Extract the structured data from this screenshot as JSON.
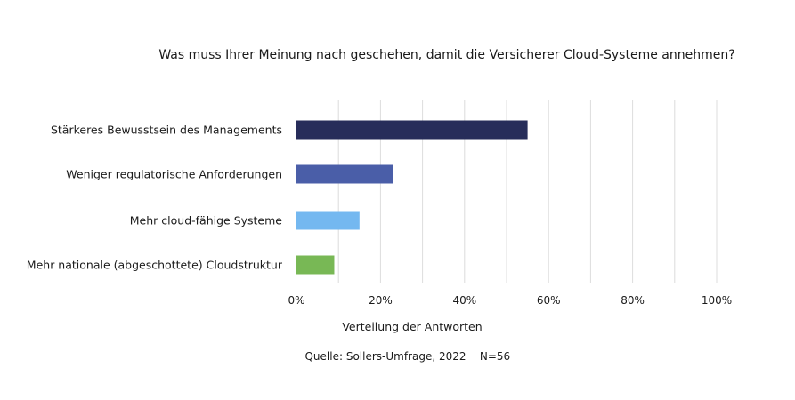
{
  "chart_data": {
    "type": "bar",
    "orientation": "horizontal",
    "title": "Was muss Ihrer Meinung nach geschehen, damit die Versicherer Cloud-Systeme annehmen?",
    "categories": [
      "Stärkeres Bewusstsein des Managements",
      "Weniger regulatorische Anforderungen",
      "Mehr cloud-fähige Systeme",
      "Mehr nationale (abgeschottete) Cloudstruktur"
    ],
    "values": [
      55,
      23,
      15,
      9
    ],
    "colors": [
      "#272d5a",
      "#4a5ea8",
      "#74b8f0",
      "#78b855"
    ],
    "xlim": [
      0,
      100
    ],
    "xticks": [
      0,
      20,
      40,
      60,
      80,
      100
    ],
    "xtick_labels": [
      "0%",
      "20%",
      "40%",
      "60%",
      "80%",
      "100%"
    ],
    "minor_gridlines": true,
    "xlabel": "Verteilung der Antworten",
    "ylabel": "",
    "grid": true,
    "legend": "none"
  },
  "source": {
    "text": "Quelle: Sollers-Umfrage, 2022",
    "sample": "N=56"
  }
}
